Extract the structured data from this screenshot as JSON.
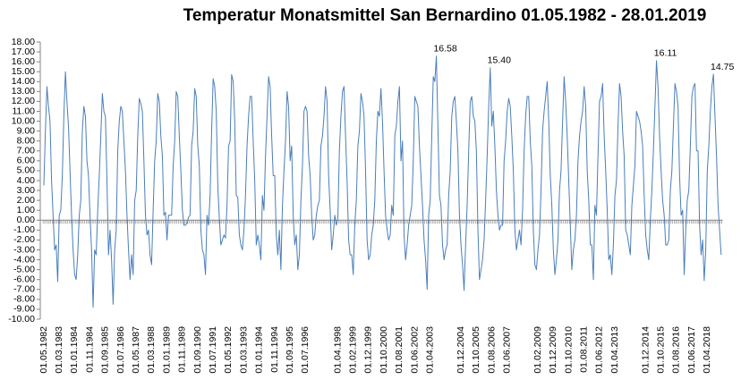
{
  "chart_data": {
    "type": "line",
    "title": "Temperatur Monatsmittel San Bernardino 01.05.1982 - 28.01.2019",
    "color": "#4a7ebb",
    "ylim": [
      -10,
      18
    ],
    "yticks": [
      {
        "value": -10,
        "label": "-10.00"
      },
      {
        "value": -9,
        "label": "-9.00"
      },
      {
        "value": -8,
        "label": "-8.00"
      },
      {
        "value": -7,
        "label": "-7.00"
      },
      {
        "value": -6,
        "label": "-6.00"
      },
      {
        "value": -5,
        "label": "-5.00"
      },
      {
        "value": -4,
        "label": "-4.00"
      },
      {
        "value": -3,
        "label": "-3.00"
      },
      {
        "value": -2,
        "label": "-2.00"
      },
      {
        "value": -1,
        "label": "-1.00"
      },
      {
        "value": 0,
        "label": "0.00"
      },
      {
        "value": 1,
        "label": "1.00"
      },
      {
        "value": 2,
        "label": "2.00"
      },
      {
        "value": 3,
        "label": "3.00"
      },
      {
        "value": 4,
        "label": "4.00"
      },
      {
        "value": 5,
        "label": "5.00"
      },
      {
        "value": 6,
        "label": "6.00"
      },
      {
        "value": 7,
        "label": "7.00"
      },
      {
        "value": 8,
        "label": "8.00"
      },
      {
        "value": 9,
        "label": "9.00"
      },
      {
        "value": 10,
        "label": "10.00"
      },
      {
        "value": 11,
        "label": "11.00"
      },
      {
        "value": 12,
        "label": "12.00"
      },
      {
        "value": 13,
        "label": "13.00"
      },
      {
        "value": 14,
        "label": "14.00"
      },
      {
        "value": 15,
        "label": "15.00"
      },
      {
        "value": 16,
        "label": "16.00"
      },
      {
        "value": 17,
        "label": "17.00"
      },
      {
        "value": 18,
        "label": "18.00"
      }
    ],
    "grid": false,
    "categories": [
      "01.05.1982",
      null,
      null,
      null,
      null,
      null,
      null,
      null,
      null,
      null,
      "01.03.1983",
      null,
      null,
      null,
      null,
      null,
      null,
      null,
      null,
      null,
      "01.01.1984",
      null,
      null,
      null,
      null,
      null,
      null,
      null,
      null,
      null,
      "01.11.1984",
      null,
      null,
      null,
      null,
      null,
      null,
      null,
      null,
      null,
      "01.09.1985",
      null,
      null,
      null,
      null,
      null,
      null,
      null,
      null,
      null,
      "01.07.1986",
      null,
      null,
      null,
      null,
      null,
      null,
      null,
      null,
      null,
      "01.05.1987",
      null,
      null,
      null,
      null,
      null,
      null,
      null,
      null,
      null,
      "01.03.1988",
      null,
      null,
      null,
      null,
      null,
      null,
      null,
      null,
      null,
      "01.01.1989",
      null,
      null,
      null,
      null,
      null,
      null,
      null,
      null,
      null,
      "01.11.1989",
      null,
      null,
      null,
      null,
      null,
      null,
      null,
      null,
      null,
      "01.09.1990",
      null,
      null,
      null,
      null,
      null,
      null,
      null,
      null,
      null,
      "01.07.1991",
      null,
      null,
      null,
      null,
      null,
      null,
      null,
      null,
      null,
      "01.05.1992",
      null,
      null,
      null,
      null,
      null,
      null,
      null,
      null,
      null,
      "01.03.1993",
      null,
      null,
      null,
      null,
      null,
      null,
      null,
      null,
      null,
      "01.01.1994",
      null,
      null,
      null,
      null,
      null,
      null,
      null,
      null,
      null,
      "01.11.1994",
      null,
      null,
      null,
      null,
      null,
      null,
      null,
      null,
      null,
      "01.09.1995",
      null,
      null,
      null,
      null,
      null,
      null,
      null,
      null,
      null,
      "01.07.1996",
      null,
      null,
      null,
      null,
      null,
      null,
      null,
      null,
      null,
      null,
      null,
      null,
      null,
      null,
      null,
      null,
      null,
      null,
      null,
      null,
      "01.04.1998",
      null,
      null,
      null,
      null,
      null,
      null,
      null,
      null,
      null,
      "01.02.1999",
      null,
      null,
      null,
      null,
      null,
      null,
      null,
      null,
      null,
      "01.12.1999",
      null,
      null,
      null,
      null,
      null,
      null,
      null,
      null,
      null,
      "01.10.2000",
      null,
      null,
      null,
      null,
      null,
      null,
      null,
      null,
      null,
      "01.08.2001",
      null,
      null,
      null,
      null,
      null,
      null,
      null,
      null,
      null,
      "01.06.2002",
      null,
      null,
      null,
      null,
      null,
      null,
      null,
      null,
      null,
      "01.04.2003",
      null,
      null,
      null,
      null,
      null,
      null,
      null,
      null,
      null,
      null,
      null,
      null,
      null,
      null,
      null,
      null,
      null,
      null,
      null,
      "01.12.2004",
      null,
      null,
      null,
      null,
      null,
      null,
      null,
      null,
      null,
      "01.10.2005",
      null,
      null,
      null,
      null,
      null,
      null,
      null,
      null,
      null,
      "01.08.2006",
      null,
      null,
      null,
      null,
      null,
      null,
      null,
      null,
      null,
      "01.06.2007",
      null,
      null,
      null,
      null,
      null,
      null,
      null,
      null,
      null,
      null,
      null,
      null,
      null,
      null,
      null,
      null,
      null,
      null,
      null,
      "01.02.2009",
      null,
      null,
      null,
      null,
      null,
      null,
      null,
      null,
      null,
      "01.12.2009",
      null,
      null,
      null,
      null,
      null,
      null,
      null,
      null,
      null,
      "01.10.2010",
      null,
      null,
      null,
      null,
      null,
      null,
      null,
      null,
      null,
      "01.08.2011",
      null,
      null,
      null,
      null,
      null,
      null,
      null,
      null,
      null,
      "01.06.2012",
      null,
      null,
      null,
      null,
      null,
      null,
      null,
      null,
      null,
      "01.04.2013",
      null,
      null,
      null,
      null,
      null,
      null,
      null,
      null,
      null,
      null,
      null,
      null,
      null,
      null,
      null,
      null,
      null,
      null,
      null,
      "01.12.2014",
      null,
      null,
      null,
      null,
      null,
      null,
      null,
      null,
      null,
      "01.10.2015",
      null,
      null,
      null,
      null,
      null,
      null,
      null,
      null,
      null,
      "01.08.2016",
      null,
      null,
      null,
      null,
      null,
      null,
      null,
      null,
      null,
      "01.06.2017",
      null,
      null,
      null,
      null,
      null,
      null,
      null,
      null,
      null,
      "01.04.2018",
      null,
      null,
      null,
      null,
      null,
      null,
      null,
      null,
      null
    ],
    "values": [
      3.5,
      9.0,
      13.5,
      11.5,
      10.0,
      4.0,
      0.5,
      -3.0,
      -2.5,
      -6.2,
      0.5,
      1.0,
      4.5,
      10.5,
      15.0,
      12.0,
      9.5,
      5.0,
      0.5,
      -3.0,
      -5.5,
      -6.0,
      -3.5,
      0.5,
      2.0,
      9.0,
      11.5,
      10.5,
      6.0,
      4.5,
      0.5,
      -3.0,
      -8.8,
      -3.0,
      -3.5,
      1.0,
      4.5,
      8.5,
      12.8,
      11.0,
      10.5,
      4.0,
      -3.5,
      -1.0,
      -4.0,
      -8.5,
      -3.0,
      -1.0,
      7.0,
      10.0,
      11.5,
      11.0,
      8.0,
      5.0,
      0.5,
      -3.0,
      -6.0,
      -3.5,
      -5.5,
      2.0,
      3.0,
      8.5,
      12.3,
      11.8,
      11.0,
      6.0,
      0.5,
      -1.5,
      -1.0,
      -3.5,
      -4.5,
      1.0,
      6.0,
      8.0,
      12.8,
      12.0,
      8.5,
      6.5,
      0.5,
      0.8,
      -2.0,
      0.5,
      0.5,
      0.5,
      5.5,
      8.0,
      13.0,
      12.5,
      8.5,
      5.0,
      1.0,
      -0.5,
      -0.5,
      -0.3,
      0.3,
      0.5,
      7.5,
      9.0,
      13.3,
      12.5,
      7.5,
      5.5,
      -1.0,
      -3.0,
      -3.5,
      -5.5,
      0.5,
      -0.5,
      2.5,
      9.0,
      14.3,
      13.5,
      11.0,
      3.5,
      0.2,
      -2.5,
      -2.0,
      -1.5,
      -1.8,
      1.5,
      7.5,
      8.0,
      14.7,
      14.0,
      10.0,
      2.5,
      2.3,
      -1.5,
      -2.5,
      -3.0,
      -1.0,
      2.5,
      7.5,
      10.5,
      12.5,
      12.5,
      8.0,
      4.0,
      -2.5,
      -1.5,
      -2.5,
      -4.0,
      2.5,
      1.0,
      6.5,
      10.5,
      14.5,
      13.5,
      8.5,
      4.5,
      4.5,
      -1.5,
      -3.5,
      -1.0,
      -5.0,
      1.5,
      5.0,
      8.0,
      13.0,
      11.5,
      6.0,
      7.5,
      0.5,
      -2.5,
      -1.5,
      -5.0,
      -3.5,
      2.0,
      5.5,
      11.0,
      11.5,
      11.0,
      6.5,
      4.5,
      0.5,
      -2.0,
      -1.5,
      0.5,
      1.5,
      2.0,
      7.5,
      8.5,
      10.5,
      13.5,
      12.0,
      4.5,
      1.0,
      -3.0,
      -1.5,
      0.5,
      -0.5,
      0.2,
      7.0,
      10.5,
      13.0,
      13.5,
      8.5,
      4.0,
      -2.0,
      -3.5,
      -3.5,
      -5.5,
      -0.5,
      2.0,
      7.5,
      9.0,
      12.8,
      12.0,
      10.5,
      5.0,
      -2.0,
      -4.0,
      -3.5,
      -1.5,
      -0.5,
      2.0,
      8.0,
      11.0,
      10.5,
      13.3,
      10.0,
      5.0,
      0.5,
      -1.0,
      -2.0,
      -1.5,
      1.5,
      0.5,
      8.5,
      9.5,
      12.0,
      13.5,
      6.0,
      8.0,
      -1.5,
      -4.0,
      -2.5,
      -0.5,
      0.5,
      1.5,
      6.0,
      12.5,
      12.0,
      11.5,
      7.5,
      4.5,
      1.5,
      -2.0,
      -4.0,
      -7.0,
      0.5,
      2.0,
      8.5,
      14.5,
      14.0,
      16.58,
      9.5,
      2.5,
      1.5,
      -2.5,
      -4.0,
      -3.0,
      -2.5,
      2.5,
      5.0,
      10.5,
      12.0,
      12.5,
      10.0,
      7.0,
      0.5,
      -2.5,
      -4.5,
      -7.1,
      -2.5,
      1.5,
      7.0,
      12.0,
      12.5,
      10.5,
      10.0,
      7.0,
      -1.0,
      -6.0,
      -5.0,
      -4.0,
      -2.0,
      2.0,
      6.5,
      11.5,
      15.4,
      9.5,
      11.0,
      7.5,
      3.0,
      0.5,
      -1.0,
      -0.5,
      -0.5,
      6.0,
      8.0,
      11.0,
      12.3,
      11.5,
      8.5,
      5.0,
      -1.0,
      -3.0,
      -2.0,
      -1.0,
      -2.5,
      1.0,
      7.0,
      10.5,
      12.5,
      12.5,
      8.0,
      5.5,
      -1.0,
      -4.5,
      -5.0,
      -3.0,
      -1.5,
      3.0,
      9.0,
      11.0,
      12.5,
      14.0,
      10.0,
      4.5,
      1.5,
      -3.0,
      -5.5,
      -4.0,
      -2.0,
      3.0,
      5.0,
      10.0,
      14.5,
      12.0,
      8.5,
      4.0,
      -0.5,
      -5.0,
      -3.0,
      -2.0,
      0.5,
      6.0,
      8.5,
      10.0,
      11.0,
      13.5,
      11.5,
      5.0,
      2.0,
      -2.5,
      -2.5,
      -6.0,
      1.5,
      0.5,
      6.5,
      12.0,
      12.5,
      13.8,
      8.5,
      5.0,
      1.0,
      -4.0,
      -3.5,
      -5.5,
      -2.5,
      2.5,
      4.0,
      9.5,
      13.8,
      12.5,
      9.0,
      6.5,
      -1.0,
      -1.5,
      -2.5,
      -3.5,
      1.5,
      3.5,
      5.5,
      11.0,
      10.5,
      10.0,
      9.0,
      7.5,
      2.5,
      -1.5,
      -3.0,
      -4.0,
      0.0,
      3.0,
      7.0,
      11.5,
      16.11,
      13.5,
      8.5,
      5.0,
      2.0,
      0.5,
      -2.5,
      -2.5,
      -2.0,
      3.0,
      5.0,
      9.5,
      13.8,
      13.0,
      11.5,
      4.5,
      0.5,
      1.0,
      -5.5,
      -1.0,
      2.0,
      3.0,
      7.5,
      12.5,
      13.5,
      13.8,
      7.0,
      7.0,
      -0.5,
      -3.5,
      -2.0,
      -6.1,
      -3.0,
      5.0,
      7.5,
      11.0,
      13.5,
      14.75,
      10.5,
      6.5,
      1.5,
      -1.0,
      -3.5
    ],
    "point_labels": [
      {
        "index": 255,
        "label": "16.58"
      },
      {
        "index": 290,
        "label": "15.40"
      },
      {
        "index": 398,
        "label": "16.11"
      },
      {
        "index": 435,
        "label": "14.75"
      }
    ]
  }
}
